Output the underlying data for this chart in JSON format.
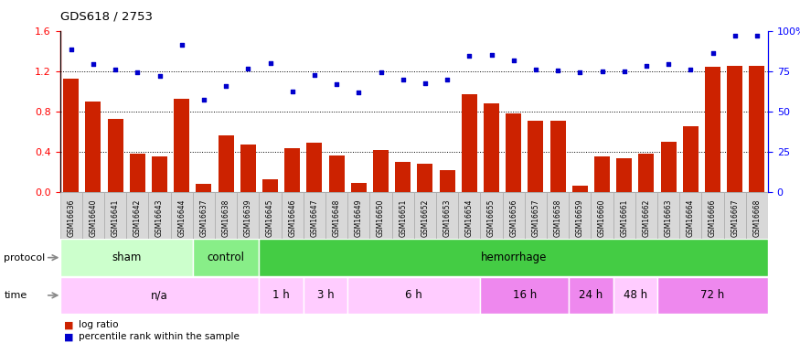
{
  "title": "GDS618 / 2753",
  "samples": [
    "GSM16636",
    "GSM16640",
    "GSM16641",
    "GSM16642",
    "GSM16643",
    "GSM16644",
    "GSM16637",
    "GSM16638",
    "GSM16639",
    "GSM16645",
    "GSM16646",
    "GSM16647",
    "GSM16648",
    "GSM16649",
    "GSM16650",
    "GSM16651",
    "GSM16652",
    "GSM16653",
    "GSM16654",
    "GSM16655",
    "GSM16656",
    "GSM16657",
    "GSM16658",
    "GSM16659",
    "GSM16660",
    "GSM16661",
    "GSM16662",
    "GSM16663",
    "GSM16664",
    "GSM16666",
    "GSM16667",
    "GSM16668"
  ],
  "log_ratio": [
    1.13,
    0.9,
    0.73,
    0.38,
    0.35,
    0.93,
    0.08,
    0.56,
    0.47,
    0.13,
    0.44,
    0.49,
    0.36,
    0.09,
    0.42,
    0.3,
    0.28,
    0.22,
    0.97,
    0.88,
    0.78,
    0.71,
    0.71,
    0.06,
    0.35,
    0.34,
    0.38,
    0.5,
    0.65,
    1.24,
    1.25,
    1.25
  ],
  "percentile": [
    1.42,
    1.27,
    1.22,
    1.19,
    1.15,
    1.46,
    0.92,
    1.05,
    1.23,
    1.28,
    1.0,
    1.16,
    1.07,
    0.99,
    1.19,
    1.12,
    1.08,
    1.12,
    1.35,
    1.36,
    1.31,
    1.22,
    1.21,
    1.19,
    1.2,
    1.2,
    1.25,
    1.27,
    1.22,
    1.38,
    1.55,
    1.55
  ],
  "protocol_groups": [
    {
      "label": "sham",
      "start": 0,
      "end": 6,
      "color": "#ccffcc"
    },
    {
      "label": "control",
      "start": 6,
      "end": 9,
      "color": "#88ee88"
    },
    {
      "label": "hemorrhage",
      "start": 9,
      "end": 32,
      "color": "#44cc44"
    }
  ],
  "time_groups": [
    {
      "label": "n/a",
      "start": 0,
      "end": 9,
      "color": "#ffccff"
    },
    {
      "label": "1 h",
      "start": 9,
      "end": 11,
      "color": "#ffccff"
    },
    {
      "label": "3 h",
      "start": 11,
      "end": 13,
      "color": "#ffccff"
    },
    {
      "label": "6 h",
      "start": 13,
      "end": 19,
      "color": "#ffccff"
    },
    {
      "label": "16 h",
      "start": 19,
      "end": 23,
      "color": "#ee88ee"
    },
    {
      "label": "24 h",
      "start": 23,
      "end": 25,
      "color": "#ee88ee"
    },
    {
      "label": "48 h",
      "start": 25,
      "end": 27,
      "color": "#ffccff"
    },
    {
      "label": "72 h",
      "start": 27,
      "end": 32,
      "color": "#ee88ee"
    }
  ],
  "bar_color": "#cc2200",
  "dot_color": "#0000cc",
  "ylim_left": [
    0,
    1.6
  ],
  "ylim_right": [
    0,
    100
  ],
  "yticks_left": [
    0,
    0.4,
    0.8,
    1.2,
    1.6
  ],
  "yticks_right": [
    0,
    25,
    50,
    75,
    100
  ],
  "dotted_lines": [
    0.4,
    0.8,
    1.2
  ],
  "label_cell_color": "#d8d8d8",
  "label_cell_edge": "#aaaaaa"
}
